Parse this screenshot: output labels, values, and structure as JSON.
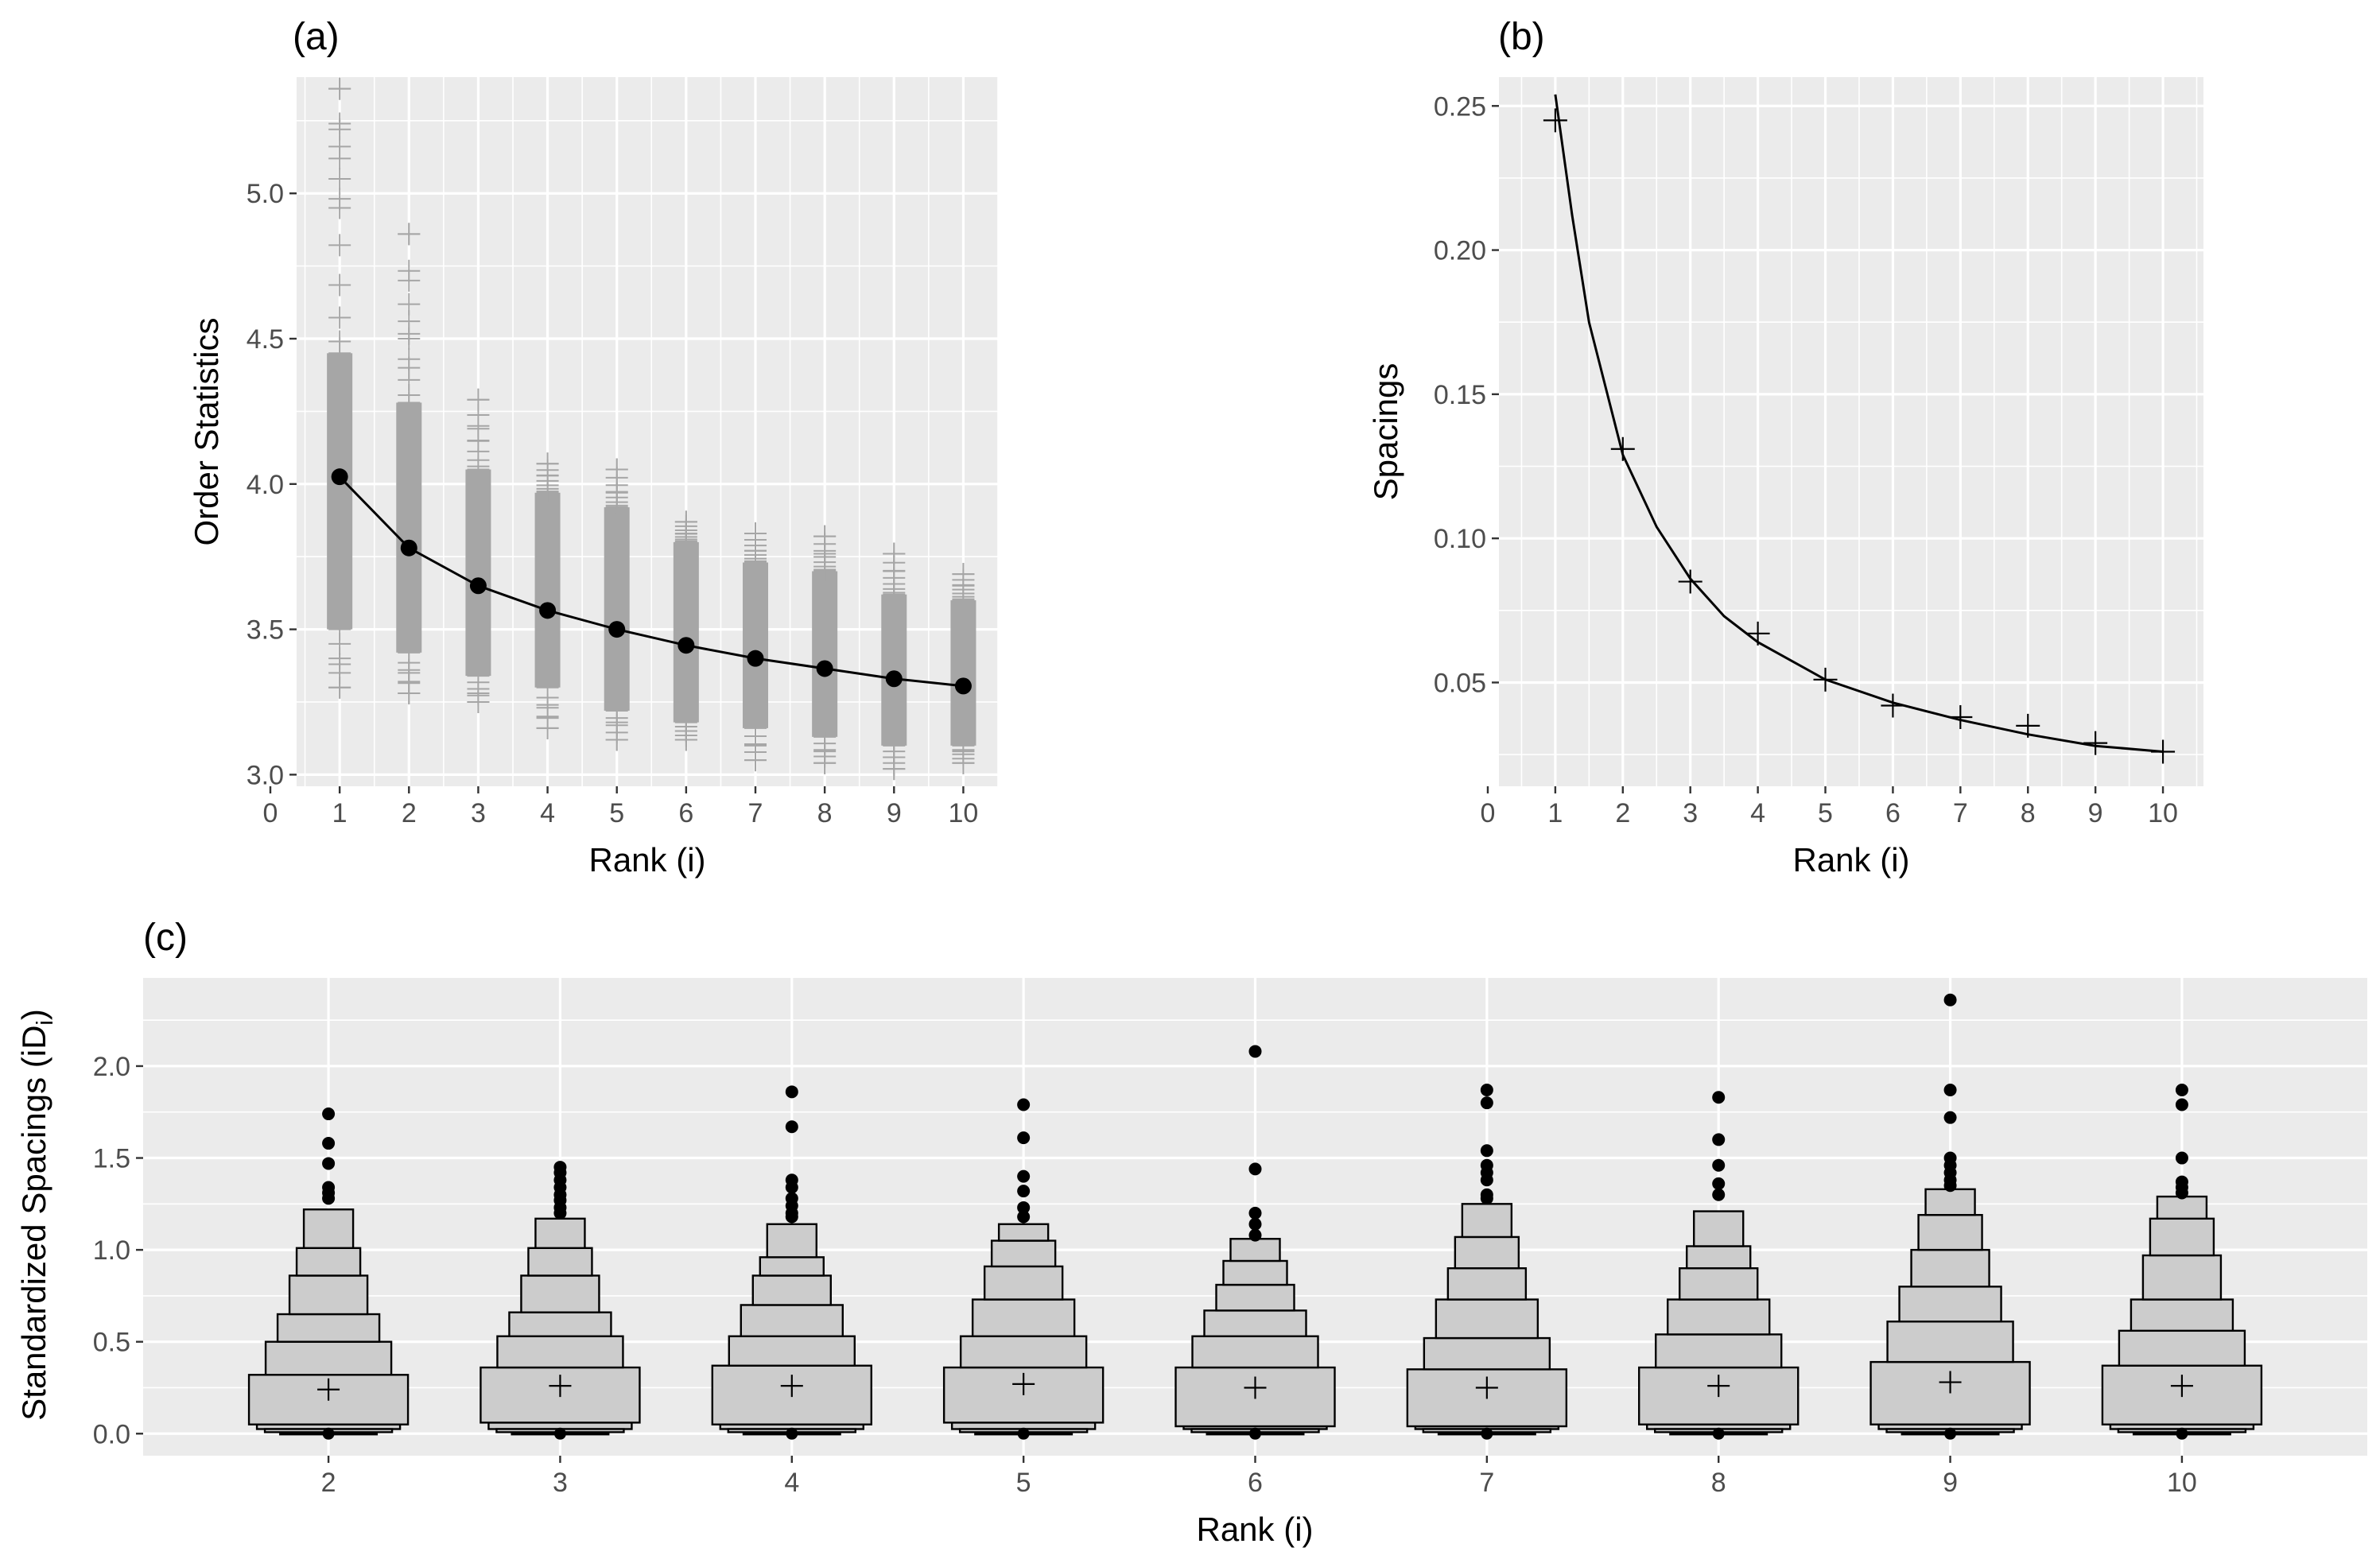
{
  "chart_data": [
    {
      "tag": "(a)",
      "type": "scatter",
      "xlabel": "Rank (i)",
      "ylabel": "Order Statistics",
      "xlim": [
        0,
        10.5
      ],
      "ylim": [
        2.96,
        5.4
      ],
      "x_ticks": [
        0,
        1,
        2,
        3,
        4,
        5,
        6,
        7,
        8,
        9,
        10
      ],
      "y_ticks": [
        3.0,
        3.5,
        4.0,
        4.5,
        5.0
      ],
      "y_tick_labels": [
        "3.0",
        "3.5",
        "4.0",
        "4.5",
        "5.0"
      ],
      "x_tick_labels": [
        "0",
        "1",
        "2",
        "3",
        "4",
        "5",
        "6",
        "7",
        "8",
        "9",
        "10"
      ],
      "grid": true,
      "sample_color": "#a6a6a6",
      "mean_color": "#000000",
      "samples": [
        {
          "x": 1,
          "dense": [
            3.5,
            4.45
          ],
          "min": 3.3,
          "max": 5.36,
          "extremes": [
            3.3,
            3.38,
            4.95,
            5.05,
            5.12,
            5.22,
            5.24,
            5.36
          ]
        },
        {
          "x": 2,
          "dense": [
            3.42,
            4.28
          ],
          "min": 3.28,
          "max": 4.86,
          "extremes": [
            3.28,
            3.32,
            3.36,
            4.4,
            4.5,
            4.56,
            4.7,
            4.86
          ]
        },
        {
          "x": 3,
          "dense": [
            3.34,
            4.05
          ],
          "min": 3.25,
          "max": 4.29,
          "extremes": [
            3.25,
            3.28,
            4.15,
            4.2,
            4.29
          ]
        },
        {
          "x": 4,
          "dense": [
            3.3,
            3.97
          ],
          "min": 3.16,
          "max": 4.07,
          "extremes": [
            3.16,
            3.2,
            3.24,
            4.03,
            4.07
          ]
        },
        {
          "x": 5,
          "dense": [
            3.22,
            3.92
          ],
          "min": 3.12,
          "max": 4.05,
          "extremes": [
            3.12,
            3.18,
            3.97,
            4.05
          ]
        },
        {
          "x": 6,
          "dense": [
            3.18,
            3.8
          ],
          "min": 3.12,
          "max": 3.87,
          "extremes": [
            3.12,
            3.15,
            3.83,
            3.87
          ]
        },
        {
          "x": 7,
          "dense": [
            3.16,
            3.73
          ],
          "min": 3.05,
          "max": 3.83,
          "extremes": [
            3.05,
            3.1,
            3.77,
            3.83
          ]
        },
        {
          "x": 8,
          "dense": [
            3.13,
            3.7
          ],
          "min": 3.04,
          "max": 3.82,
          "extremes": [
            3.04,
            3.08,
            3.76,
            3.82
          ]
        },
        {
          "x": 9,
          "dense": [
            3.1,
            3.62
          ],
          "min": 3.02,
          "max": 3.76,
          "extremes": [
            3.02,
            3.06,
            3.7,
            3.76
          ]
        },
        {
          "x": 10,
          "dense": [
            3.1,
            3.6
          ],
          "min": 3.04,
          "max": 3.69,
          "extremes": [
            3.04,
            3.08,
            3.65,
            3.69
          ]
        }
      ],
      "mean_points": {
        "x": [
          1,
          2,
          3,
          4,
          5,
          6,
          7,
          8,
          9,
          10
        ],
        "y": [
          4.025,
          3.78,
          3.65,
          3.565,
          3.5,
          3.445,
          3.4,
          3.365,
          3.33,
          3.305
        ]
      }
    },
    {
      "tag": "(b)",
      "type": "line",
      "xlabel": "Rank (i)",
      "ylabel": "Spacings",
      "xlim": [
        -0.2,
        10.6
      ],
      "ylim": [
        0.014,
        0.26
      ],
      "x_ticks": [
        0,
        1,
        2,
        3,
        4,
        5,
        6,
        7,
        8,
        9,
        10
      ],
      "x_tick_labels": [
        "0",
        "1",
        "2",
        "3",
        "4",
        "5",
        "6",
        "7",
        "8",
        "9",
        "10"
      ],
      "y_ticks": [
        0.05,
        0.1,
        0.15,
        0.2,
        0.25
      ],
      "y_tick_labels": [
        "0.05",
        "0.10",
        "0.15",
        "0.20",
        "0.25"
      ],
      "grid": true,
      "line": {
        "x": [
          1,
          1.25,
          1.5,
          2,
          2.5,
          3,
          3.5,
          4,
          5,
          6,
          7,
          8,
          9,
          10
        ],
        "y": [
          0.254,
          0.212,
          0.175,
          0.129,
          0.104,
          0.086,
          0.073,
          0.064,
          0.051,
          0.043,
          0.037,
          0.032,
          0.028,
          0.026
        ]
      },
      "points": {
        "x": [
          1,
          2,
          3,
          4,
          5,
          6,
          7,
          8,
          9,
          10
        ],
        "y": [
          0.245,
          0.131,
          0.085,
          0.067,
          0.051,
          0.042,
          0.038,
          0.035,
          0.029,
          0.026
        ]
      }
    },
    {
      "tag": "(c)",
      "type": "boxplot",
      "xlabel": "Rank (i)",
      "ylabel": "Standardized Spacings (iD",
      "ylabel_subscript": "i",
      "ylabel_close": ")",
      "categories": [
        "2",
        "3",
        "4",
        "5",
        "6",
        "7",
        "8",
        "9",
        "10"
      ],
      "ylim": [
        -0.12,
        2.48
      ],
      "y_ticks": [
        0.0,
        0.5,
        1.0,
        1.5,
        2.0
      ],
      "y_tick_labels": [
        "0.0",
        "0.5",
        "1.0",
        "1.5",
        "2.0"
      ],
      "grid": true,
      "box_fill": "#cccccc",
      "box_stroke": "#000000",
      "boxes": [
        {
          "mean": 0.24,
          "levels": [
            [
              0.05,
              0.32
            ],
            [
              0.32,
              0.5
            ],
            [
              0.5,
              0.65
            ],
            [
              0.65,
              0.86
            ],
            [
              0.86,
              1.01
            ],
            [
              1.01,
              1.22
            ]
          ],
          "outliers": [
            1.28,
            1.31,
            1.34,
            1.47,
            1.58,
            1.74
          ]
        },
        {
          "mean": 0.26,
          "levels": [
            [
              0.06,
              0.36
            ],
            [
              0.36,
              0.53
            ],
            [
              0.53,
              0.66
            ],
            [
              0.66,
              0.86
            ],
            [
              0.86,
              1.01
            ],
            [
              1.01,
              1.17
            ]
          ],
          "outliers": [
            1.2,
            1.23,
            1.27,
            1.3,
            1.34,
            1.38,
            1.42,
            1.45
          ]
        },
        {
          "mean": 0.26,
          "levels": [
            [
              0.05,
              0.37
            ],
            [
              0.37,
              0.53
            ],
            [
              0.53,
              0.7
            ],
            [
              0.7,
              0.86
            ],
            [
              0.86,
              0.96
            ],
            [
              0.96,
              1.14
            ]
          ],
          "outliers": [
            1.18,
            1.2,
            1.24,
            1.28,
            1.34,
            1.38,
            1.67,
            1.86
          ]
        },
        {
          "mean": 0.27,
          "levels": [
            [
              0.06,
              0.36
            ],
            [
              0.36,
              0.53
            ],
            [
              0.53,
              0.73
            ],
            [
              0.73,
              0.91
            ],
            [
              0.91,
              1.05
            ],
            [
              1.05,
              1.14
            ]
          ],
          "outliers": [
            1.18,
            1.23,
            1.32,
            1.4,
            1.61,
            1.79
          ]
        },
        {
          "mean": 0.25,
          "levels": [
            [
              0.04,
              0.36
            ],
            [
              0.36,
              0.53
            ],
            [
              0.53,
              0.67
            ],
            [
              0.67,
              0.81
            ],
            [
              0.81,
              0.94
            ],
            [
              0.94,
              1.06
            ]
          ],
          "outliers": [
            1.08,
            1.14,
            1.2,
            1.44,
            2.08
          ]
        },
        {
          "mean": 0.25,
          "levels": [
            [
              0.04,
              0.35
            ],
            [
              0.35,
              0.52
            ],
            [
              0.52,
              0.73
            ],
            [
              0.73,
              0.9
            ],
            [
              0.9,
              1.07
            ],
            [
              1.07,
              1.25
            ]
          ],
          "outliers": [
            1.28,
            1.3,
            1.38,
            1.42,
            1.46,
            1.54,
            1.8,
            1.87
          ]
        },
        {
          "mean": 0.26,
          "levels": [
            [
              0.05,
              0.36
            ],
            [
              0.36,
              0.54
            ],
            [
              0.54,
              0.73
            ],
            [
              0.73,
              0.9
            ],
            [
              0.9,
              1.02
            ],
            [
              1.02,
              1.21
            ]
          ],
          "outliers": [
            1.3,
            1.36,
            1.46,
            1.6,
            1.83
          ]
        },
        {
          "mean": 0.28,
          "levels": [
            [
              0.05,
              0.39
            ],
            [
              0.39,
              0.61
            ],
            [
              0.61,
              0.8
            ],
            [
              0.8,
              1.0
            ],
            [
              1.0,
              1.19
            ],
            [
              1.19,
              1.33
            ]
          ],
          "outliers": [
            1.35,
            1.38,
            1.42,
            1.46,
            1.5,
            1.72,
            1.87,
            2.36
          ]
        },
        {
          "mean": 0.26,
          "levels": [
            [
              0.05,
              0.37
            ],
            [
              0.37,
              0.56
            ],
            [
              0.56,
              0.73
            ],
            [
              0.73,
              0.97
            ],
            [
              0.97,
              1.17
            ],
            [
              1.17,
              1.29
            ]
          ],
          "outliers": [
            1.31,
            1.34,
            1.37,
            1.5,
            1.79,
            1.87
          ]
        }
      ]
    }
  ]
}
